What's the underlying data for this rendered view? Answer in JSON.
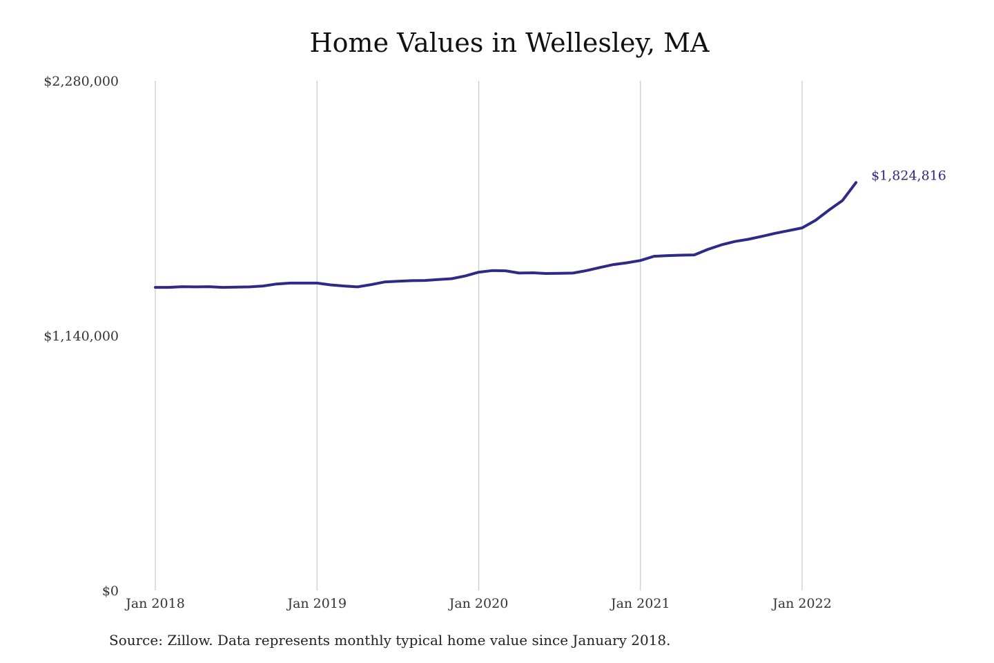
{
  "chart_data": {
    "type": "line",
    "title": "Home Values in Wellesley, MA",
    "xlabel": "",
    "ylabel": "",
    "ylim": [
      0,
      2280000
    ],
    "y_ticks": [
      {
        "value": 0,
        "label": "$0"
      },
      {
        "value": 1140000,
        "label": "$1,140,000"
      },
      {
        "value": 2280000,
        "label": "$2,280,000"
      }
    ],
    "x_ticks": [
      {
        "value": 0,
        "label": "Jan 2018"
      },
      {
        "value": 12,
        "label": "Jan 2019"
      },
      {
        "value": 24,
        "label": "Jan 2020"
      },
      {
        "value": 36,
        "label": "Jan 2021"
      },
      {
        "value": 48,
        "label": "Jan 2022"
      }
    ],
    "grid": {
      "vertical": true,
      "horizontal": false
    },
    "series": [
      {
        "color": "#2e2a86",
        "x": [
          "2018-01",
          "2018-02",
          "2018-03",
          "2018-04",
          "2018-05",
          "2018-06",
          "2018-07",
          "2018-08",
          "2018-09",
          "2018-10",
          "2018-11",
          "2018-12",
          "2019-01",
          "2019-02",
          "2019-03",
          "2019-04",
          "2019-05",
          "2019-06",
          "2019-07",
          "2019-08",
          "2019-09",
          "2019-10",
          "2019-11",
          "2019-12",
          "2020-01",
          "2020-02",
          "2020-03",
          "2020-04",
          "2020-05",
          "2020-06",
          "2020-07",
          "2020-08",
          "2020-09",
          "2020-10",
          "2020-11",
          "2020-12",
          "2021-01",
          "2021-02",
          "2021-03",
          "2021-04",
          "2021-05",
          "2021-06",
          "2021-07",
          "2021-08",
          "2021-09",
          "2021-10",
          "2021-11",
          "2021-12",
          "2022-01",
          "2022-02",
          "2022-03",
          "2022-04",
          "2022-05"
        ],
        "values": [
          1356000,
          1356000,
          1359000,
          1358000,
          1359000,
          1356000,
          1357000,
          1358000,
          1362000,
          1371000,
          1375000,
          1375000,
          1375000,
          1367000,
          1362000,
          1358000,
          1368000,
          1380000,
          1383000,
          1386000,
          1387000,
          1391000,
          1395000,
          1407000,
          1424000,
          1431000,
          1430000,
          1420000,
          1421000,
          1418000,
          1419000,
          1420000,
          1431000,
          1445000,
          1458000,
          1466000,
          1476000,
          1495000,
          1498000,
          1500000,
          1501000,
          1526000,
          1546000,
          1561000,
          1571000,
          1584000,
          1598000,
          1610000,
          1622000,
          1656000,
          1702000,
          1745000,
          1824816
        ]
      }
    ],
    "end_label": "$1,824,816"
  },
  "source_note": "Source: Zillow. Data represents monthly typical home value since January 2018."
}
